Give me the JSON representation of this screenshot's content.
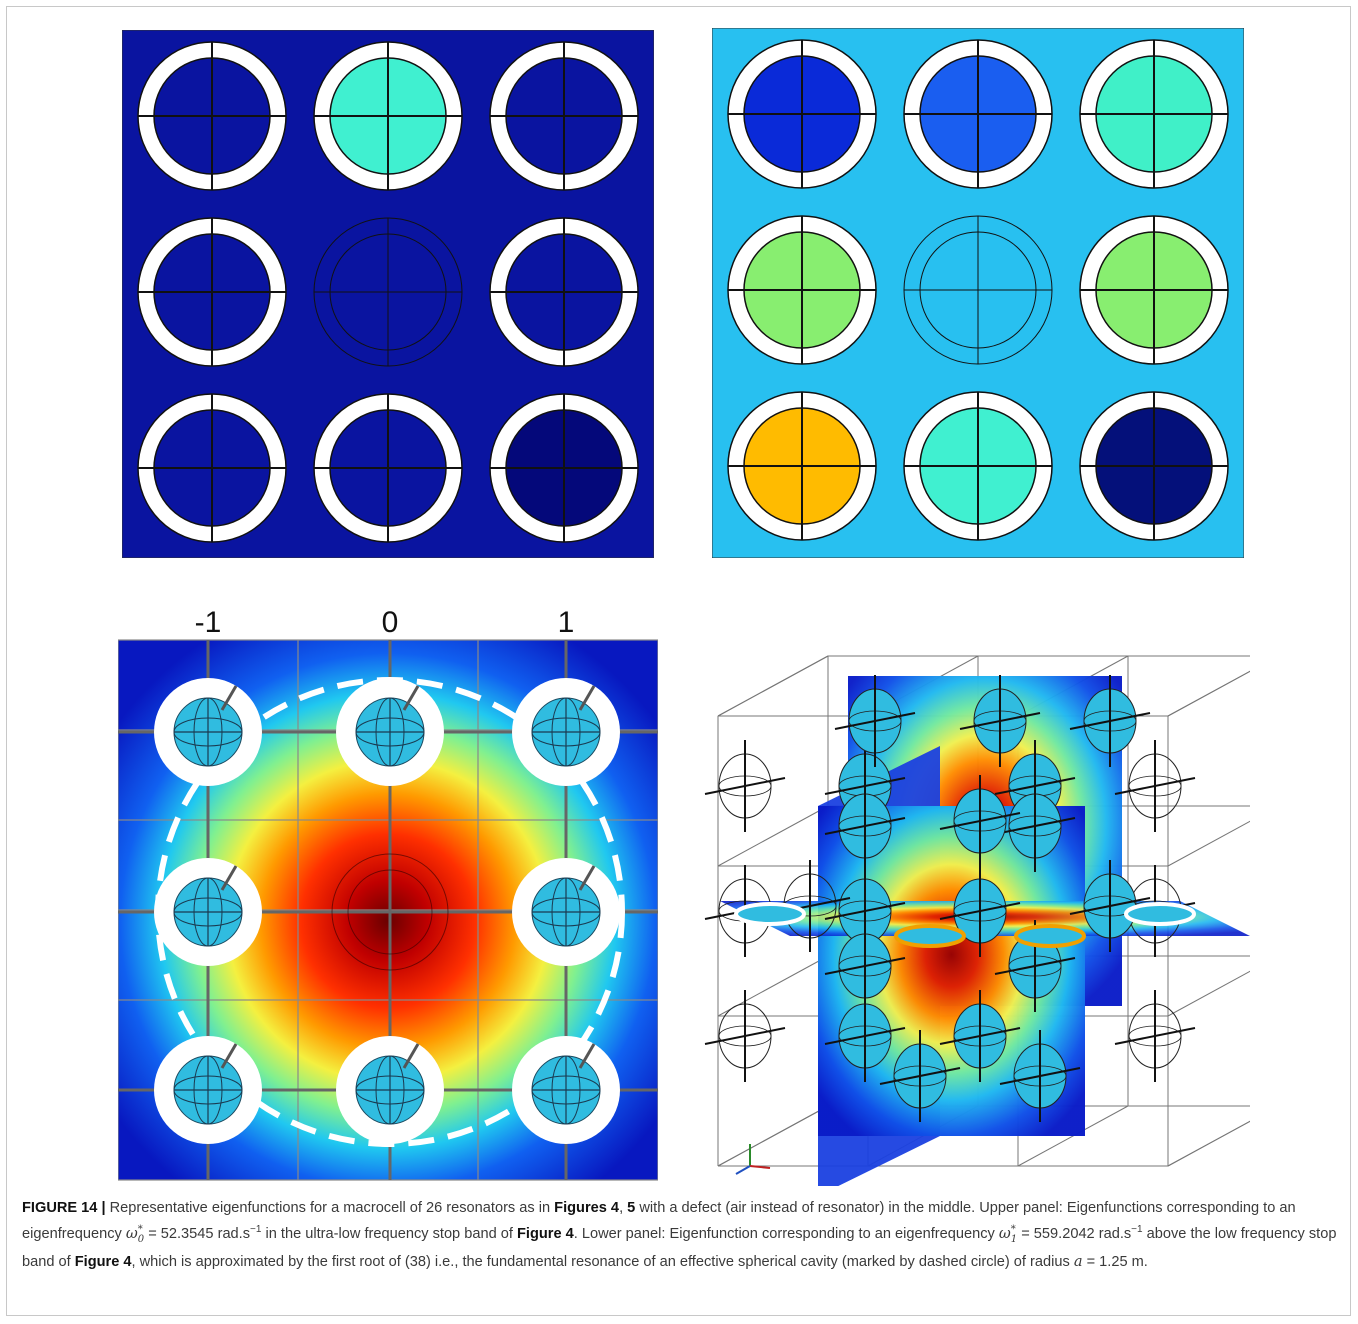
{
  "figure": {
    "label": "FIGURE 14 |",
    "caption_parts": [
      {
        "t": "text",
        "v": " Representative eigenfunctions for a macrocell of 26 resonators as in "
      },
      {
        "t": "bold",
        "v": "Figures 4"
      },
      {
        "t": "text",
        "v": ", "
      },
      {
        "t": "bold",
        "v": "5"
      },
      {
        "t": "text",
        "v": " with a defect (air instead of resonator) in the middle. Upper panel: Eigenfunctions corresponding to an eigenfrequency "
      },
      {
        "t": "math",
        "v": "ω",
        "sup": "*",
        "sub": "0"
      },
      {
        "t": "text",
        "v": " = 52.3545 rad.s"
      },
      {
        "t": "sup",
        "v": "−1"
      },
      {
        "t": "text",
        "v": " in the ultra-low frequency stop band of "
      },
      {
        "t": "bold",
        "v": "Figure 4"
      },
      {
        "t": "text",
        "v": ". Lower panel: Eigenfunction corresponding to an eigenfrequency "
      },
      {
        "t": "math",
        "v": "ω",
        "sup": "*",
        "sub": "1"
      },
      {
        "t": "text",
        "v": " = 559.2042 rad.s"
      },
      {
        "t": "sup",
        "v": "−1"
      },
      {
        "t": "text",
        "v": " above the low frequency stop band of "
      },
      {
        "t": "bold",
        "v": "Figure 4"
      },
      {
        "t": "text",
        "v": ", which is approximated by the first root of (38) i.e., the fundamental resonance of an effective spherical cavity (marked by dashed circle) of radius "
      },
      {
        "t": "mathi",
        "v": "a"
      },
      {
        "t": "text",
        "v": " = 1.25 m."
      }
    ]
  },
  "panels": {
    "top_left": {
      "background": "#0a14a0",
      "inner_colors": [
        "#0a14a0",
        "#40f0d0",
        "#0a14a0",
        "#0a14a0",
        null,
        "#0a14a0",
        "#0a14a0",
        "#0a14a0",
        "#04087a"
      ]
    },
    "top_right": {
      "background": "#28c0f0",
      "inner_colors": [
        "#0a2ad8",
        "#1a5ef0",
        "#40f0c8",
        "#88ee70",
        null,
        "#88ee70",
        "#ffbb00",
        "#40f0d0",
        "#04107a"
      ]
    },
    "bottom_left": {
      "column_labels": [
        "-1",
        "0",
        "1"
      ],
      "inclusion_color": "#30bce0"
    },
    "bottom_right": {
      "inclusion_color": "#30bce0"
    }
  }
}
